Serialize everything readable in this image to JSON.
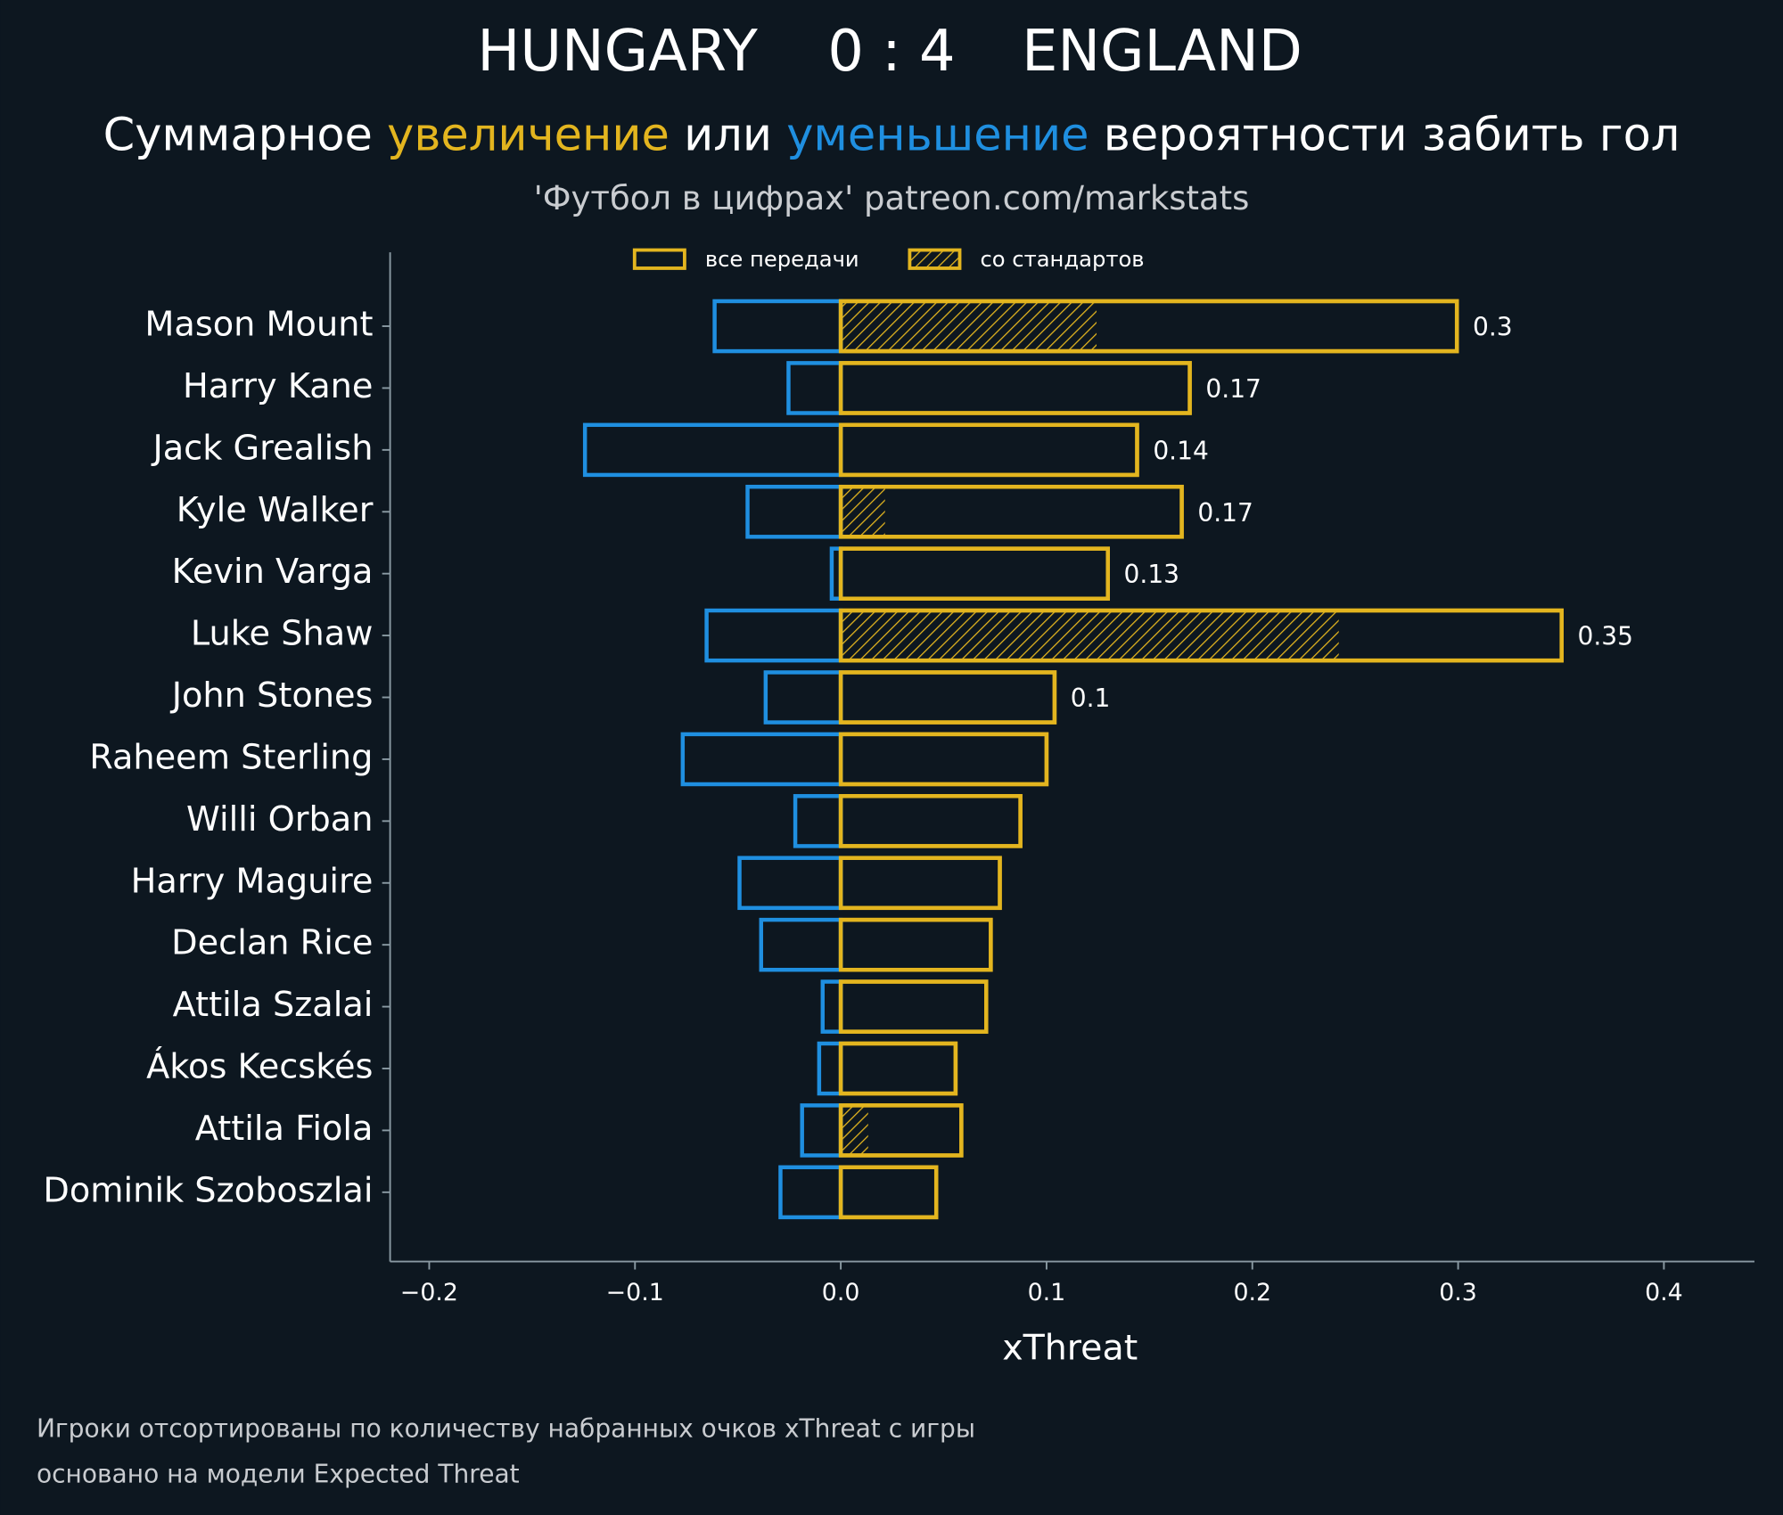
{
  "chart_data": {
    "type": "diverging_bar",
    "title": {
      "home": "HUNGARY",
      "score": "0 : 4",
      "away": "ENGLAND"
    },
    "subtitle": {
      "parts": [
        "Суммарное",
        "увеличение",
        "или",
        "уменьшение",
        "вероятности забить гол"
      ]
    },
    "credit": "'Футбол в цифрах' patreon.com/markstats",
    "xlabel": "xThreat",
    "footnotes": [
      "Игроки отсортированы по количеству набранных очков xThreat с игры",
      "основано на модели Expected Threat"
    ],
    "categories": [
      "Mason Mount",
      "Harry Kane",
      "Jack Grealish",
      "Kyle Walker",
      "Kevin Varga",
      "Luke Shaw",
      "John Stones",
      "Raheem Sterling",
      "Willi Orban",
      "Harry Maguire",
      "Declan Rice",
      "Attila Szalai",
      "Ákos Kecskés",
      "Attila Fiola",
      "Dominik Szoboszlai"
    ],
    "series": [
      {
        "name": "все передачи",
        "color": "#e3b51f",
        "values": [
          0.2994,
          0.1696,
          0.144,
          0.1657,
          0.1298,
          0.3503,
          0.1039,
          0.1,
          0.0873,
          0.0773,
          0.0729,
          0.0707,
          0.0558,
          0.0586,
          0.0464
        ],
        "value_labels": [
          "0.3",
          "0.17",
          "0.14",
          "0.17",
          "0.13",
          "0.35",
          "0.1",
          null,
          null,
          null,
          null,
          null,
          null,
          null,
          null
        ]
      },
      {
        "name": "со стандартов",
        "color": "#e3b51f",
        "hatch": true,
        "values": [
          0.1243,
          0,
          0,
          0.0215,
          0,
          0.242,
          0,
          0,
          0,
          0,
          0,
          0,
          0,
          0.0133,
          0
        ]
      },
      {
        "color": "#1f8fe0",
        "values": [
          -0.0613,
          -0.0254,
          -0.1243,
          -0.0453,
          -0.0044,
          -0.0652,
          -0.0365,
          -0.0768,
          -0.0221,
          -0.0492,
          -0.0387,
          -0.0088,
          -0.0105,
          -0.0188,
          -0.0293
        ]
      }
    ],
    "xlim": [
      -0.219,
      0.444
    ],
    "xticks": [
      {
        "value": -0.2,
        "label": "−0.2"
      },
      {
        "value": -0.1,
        "label": "−0.1"
      },
      {
        "value": 0,
        "label": "0.0"
      },
      0.1,
      0.2,
      0.3,
      0.4
    ]
  }
}
